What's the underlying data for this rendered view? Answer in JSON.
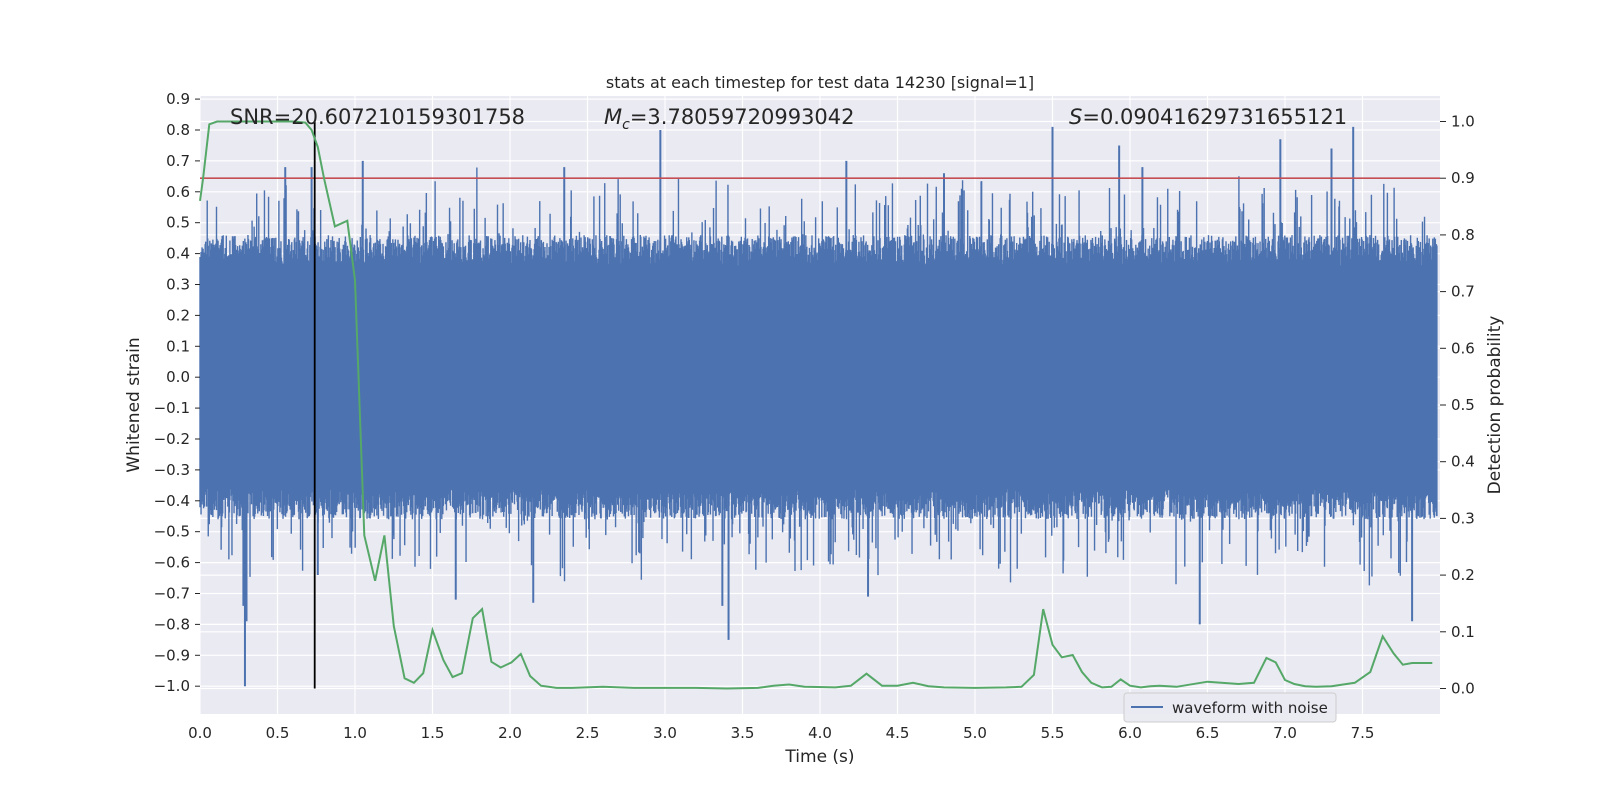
{
  "chart_data": {
    "type": "line",
    "title": "stats at each timestep for test data 14230 [signal=1]",
    "xlabel": "Time (s)",
    "ylabel_left": "Whitened strain",
    "ylabel_right": "Detection probability",
    "xlim": [
      0.0,
      8.0
    ],
    "ylim_left": [
      -1.09,
      0.91
    ],
    "ylim_right": [
      -0.045,
      1.045
    ],
    "x_ticks": [
      "0.0",
      "0.5",
      "1.0",
      "1.5",
      "2.0",
      "2.5",
      "3.0",
      "3.5",
      "4.0",
      "4.5",
      "5.0",
      "5.5",
      "6.0",
      "6.5",
      "7.0",
      "7.5"
    ],
    "y_ticks_left": [
      "0.9",
      "0.8",
      "0.7",
      "0.6",
      "0.5",
      "0.4",
      "0.3",
      "0.2",
      "0.1",
      "0.0",
      "−0.1",
      "−0.2",
      "−0.3",
      "−0.4",
      "−0.5",
      "−0.6",
      "−0.7",
      "−0.8",
      "−0.9",
      "−1.0"
    ],
    "y_ticks_right": [
      "1.0",
      "0.9",
      "0.8",
      "0.7",
      "0.6",
      "0.5",
      "0.4",
      "0.3",
      "0.2",
      "0.1",
      "0.0"
    ],
    "grid": true,
    "legend": {
      "position": "lower-right",
      "entries": [
        "waveform with noise"
      ]
    },
    "annotations": {
      "snr": "SNR=20.607210159301758",
      "mc_prefix": "M",
      "mc_sub": "c",
      "mc_value": "=3.78059720993042",
      "s_prefix": "S",
      "s_value": "=0.09041629731655121"
    },
    "threshold_probability": 0.9,
    "event_time": 0.74,
    "series": [
      {
        "name": "waveform with noise",
        "kind": "strain",
        "color": "#4c72b0",
        "core_amplitude": 0.36,
        "peaks": [
          {
            "t": 0.29,
            "v": -1.0
          },
          {
            "t": 0.28,
            "v": -0.74
          },
          {
            "t": 0.3,
            "v": -0.79
          },
          {
            "t": 0.55,
            "v": 0.68
          },
          {
            "t": 0.72,
            "v": 0.68
          },
          {
            "t": 0.76,
            "v": -0.64
          },
          {
            "t": 1.05,
            "v": 0.7
          },
          {
            "t": 1.65,
            "v": -0.72
          },
          {
            "t": 2.15,
            "v": -0.73
          },
          {
            "t": 2.97,
            "v": 0.8
          },
          {
            "t": 3.41,
            "v": -0.85
          },
          {
            "t": 3.37,
            "v": -0.74
          },
          {
            "t": 4.31,
            "v": -0.71
          },
          {
            "t": 4.17,
            "v": 0.7
          },
          {
            "t": 5.5,
            "v": 0.81
          },
          {
            "t": 5.93,
            "v": 0.75
          },
          {
            "t": 6.45,
            "v": -0.8
          },
          {
            "t": 6.97,
            "v": 0.77
          },
          {
            "t": 7.44,
            "v": 0.81
          },
          {
            "t": 7.3,
            "v": 0.74
          },
          {
            "t": 7.82,
            "v": -0.79
          },
          {
            "t": 6.08,
            "v": 0.68
          },
          {
            "t": 2.35,
            "v": 0.68
          },
          {
            "t": 4.8,
            "v": 0.66
          }
        ]
      },
      {
        "name": "Detection probability",
        "kind": "probability",
        "color": "#55a868",
        "x": [
          0.0,
          0.02,
          0.06,
          0.11,
          0.2,
          0.3,
          0.4,
          0.5,
          0.6,
          0.68,
          0.72,
          0.76,
          0.8,
          0.87,
          0.95,
          1.0,
          1.06,
          1.13,
          1.19,
          1.25,
          1.32,
          1.38,
          1.44,
          1.5,
          1.57,
          1.63,
          1.69,
          1.76,
          1.82,
          1.88,
          1.94,
          2.01,
          2.07,
          2.13,
          2.2,
          2.3,
          2.4,
          2.6,
          2.8,
          3.0,
          3.2,
          3.4,
          3.6,
          3.7,
          3.8,
          3.9,
          4.1,
          4.2,
          4.3,
          4.4,
          4.5,
          4.6,
          4.7,
          4.8,
          5.0,
          5.2,
          5.3,
          5.38,
          5.44,
          5.5,
          5.56,
          5.63,
          5.69,
          5.75,
          5.82,
          5.88,
          5.94,
          6.0,
          6.07,
          6.13,
          6.19,
          6.3,
          6.5,
          6.7,
          6.8,
          6.88,
          6.94,
          7.0,
          7.06,
          7.13,
          7.2,
          7.3,
          7.45,
          7.55,
          7.63,
          7.7,
          7.76,
          7.82,
          7.88,
          7.95
        ],
        "values": [
          0.86,
          0.9,
          0.995,
          1.0,
          1.0,
          1.0,
          1.0,
          1.0,
          1.0,
          0.998,
          0.985,
          0.955,
          0.9,
          0.815,
          0.825,
          0.72,
          0.27,
          0.19,
          0.27,
          0.11,
          0.018,
          0.01,
          0.027,
          0.103,
          0.05,
          0.02,
          0.027,
          0.124,
          0.14,
          0.047,
          0.037,
          0.046,
          0.061,
          0.022,
          0.005,
          0.001,
          0.001,
          0.003,
          0.001,
          0.001,
          0.001,
          0.0,
          0.001,
          0.005,
          0.007,
          0.003,
          0.002,
          0.005,
          0.026,
          0.005,
          0.005,
          0.01,
          0.004,
          0.002,
          0.001,
          0.002,
          0.003,
          0.024,
          0.14,
          0.077,
          0.055,
          0.059,
          0.029,
          0.01,
          0.002,
          0.003,
          0.016,
          0.005,
          0.002,
          0.004,
          0.005,
          0.003,
          0.012,
          0.008,
          0.01,
          0.054,
          0.046,
          0.015,
          0.008,
          0.004,
          0.003,
          0.004,
          0.01,
          0.029,
          0.092,
          0.062,
          0.042,
          0.045,
          0.045,
          0.045
        ]
      }
    ]
  }
}
